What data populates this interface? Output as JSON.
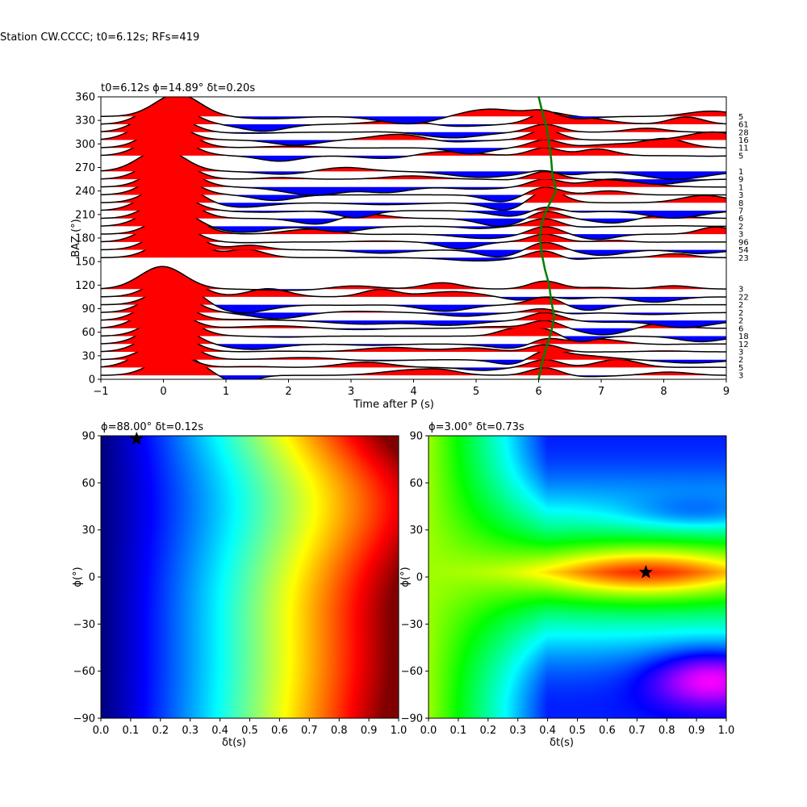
{
  "suptitle": "Station CW.CCCC; t0=6.12s; RFs=419",
  "colors": {
    "positive_fill": "#ff0000",
    "negative_fill": "#0000ff",
    "trace_line": "#000000",
    "t0_curve": "#008000",
    "star": "#000000"
  },
  "chart_data": [
    {
      "type": "line",
      "name": "receiver-function-stack",
      "title": "t0=6.12s ϕ=14.89° δt=0.20s",
      "xlabel": "Time after P (s)",
      "ylabel": "BAZ (°)",
      "xlim": [
        -1,
        9
      ],
      "ylim": [
        0,
        360
      ],
      "x_ticks": [
        "−1",
        "0",
        "1",
        "2",
        "3",
        "4",
        "5",
        "6",
        "7",
        "8",
        "9"
      ],
      "y_ticks": [
        "0",
        "30",
        "60",
        "90",
        "120",
        "150",
        "180",
        "210",
        "240",
        "270",
        "300",
        "330",
        "360"
      ],
      "baz_bins": [
        5,
        15,
        25,
        35,
        45,
        55,
        65,
        75,
        85,
        95,
        105,
        115,
        155,
        165,
        175,
        185,
        195,
        205,
        215,
        225,
        235,
        245,
        255,
        265,
        285,
        295,
        305,
        315,
        325,
        335
      ],
      "counts": [
        "3",
        "5",
        "2",
        "3",
        "12",
        "18",
        "6",
        "2",
        "2",
        "2",
        "22",
        "3",
        "23",
        "54",
        "96",
        "3",
        "2",
        "6",
        "7",
        "8",
        "3",
        "1",
        "9",
        "1",
        "5",
        "11",
        "16",
        "28",
        "61",
        "5"
      ],
      "t0_curve": {
        "baz": [
          0,
          20,
          40,
          60,
          80,
          100,
          120,
          140,
          160,
          180,
          200,
          220,
          240,
          260,
          280,
          300,
          320,
          340,
          360
        ],
        "time": [
          6.0,
          6.05,
          6.12,
          6.2,
          6.25,
          6.2,
          6.17,
          6.1,
          6.05,
          6.02,
          6.05,
          6.15,
          6.28,
          6.22,
          6.2,
          6.17,
          6.13,
          6.06,
          6.0
        ]
      },
      "grid": false
    },
    {
      "type": "heatmap",
      "name": "misfit-grid-1",
      "title": "ϕ=88.00° δt=0.12s",
      "xlabel": "δt(s)",
      "ylabel": "ϕ(°)",
      "xlim": [
        0,
        1
      ],
      "ylim": [
        -90,
        90
      ],
      "x_ticks": [
        "0.0",
        "0.1",
        "0.2",
        "0.3",
        "0.4",
        "0.5",
        "0.6",
        "0.7",
        "0.8",
        "0.9",
        "1.0"
      ],
      "y_ticks": [
        "−90",
        "−60",
        "−30",
        "0",
        "30",
        "60",
        "90"
      ],
      "best": {
        "dt": 0.12,
        "phi": 88
      },
      "colormap": "jet"
    },
    {
      "type": "heatmap",
      "name": "misfit-grid-2",
      "title": "ϕ=3.00° δt=0.73s",
      "xlabel": "δt(s)",
      "ylabel": "ϕ(°)",
      "xlim": [
        0,
        1
      ],
      "ylim": [
        -90,
        90
      ],
      "x_ticks": [
        "0.0",
        "0.1",
        "0.2",
        "0.3",
        "0.4",
        "0.5",
        "0.6",
        "0.7",
        "0.8",
        "0.9",
        "1.0"
      ],
      "y_ticks": [
        "−90",
        "−60",
        "−30",
        "0",
        "30",
        "60",
        "90"
      ],
      "best": {
        "dt": 0.73,
        "phi": 3
      },
      "colormap": "hsv"
    }
  ]
}
